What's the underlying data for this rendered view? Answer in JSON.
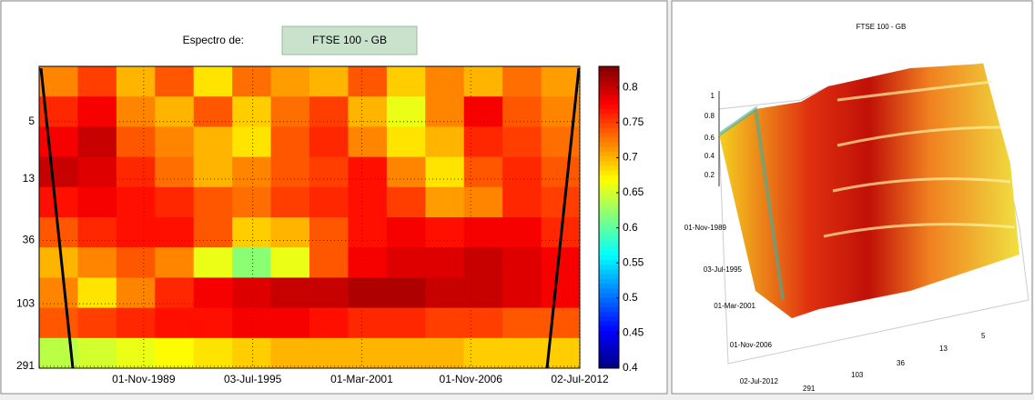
{
  "selector": {
    "label": "Espectro de:",
    "button": "FTSE 100 - GB"
  },
  "chart_data": {
    "type": "heatmap",
    "log_y": true,
    "grid": true,
    "xlim": [
      1984.4,
      2012.5
    ],
    "xticks": [
      {
        "value": 1989.833,
        "label": "01-Nov-1989"
      },
      {
        "value": 1995.5,
        "label": "03-Jul-1995"
      },
      {
        "value": 2001.167,
        "label": "01-Mar-2001"
      },
      {
        "value": 2006.833,
        "label": "01-Nov-2006"
      },
      {
        "value": 2012.5,
        "label": "02-Jul-2012"
      }
    ],
    "ylim": [
      2,
      300
    ],
    "yticks": [
      5,
      13,
      36,
      103,
      291
    ],
    "clim": [
      0.4,
      0.83
    ],
    "cticks": [
      0.4,
      0.45,
      0.5,
      0.55,
      0.6,
      0.65,
      0.7,
      0.75,
      0.8
    ],
    "rows": [
      [
        0.72,
        0.75,
        0.7,
        0.74,
        0.68,
        0.73,
        0.71,
        0.7,
        0.74,
        0.69,
        0.72,
        0.7,
        0.73,
        0.71
      ],
      [
        0.76,
        0.78,
        0.72,
        0.7,
        0.74,
        0.69,
        0.73,
        0.75,
        0.7,
        0.66,
        0.72,
        0.78,
        0.74,
        0.72
      ],
      [
        0.78,
        0.8,
        0.74,
        0.72,
        0.7,
        0.68,
        0.74,
        0.76,
        0.72,
        0.68,
        0.7,
        0.76,
        0.75,
        0.73
      ],
      [
        0.8,
        0.79,
        0.76,
        0.73,
        0.7,
        0.72,
        0.74,
        0.75,
        0.77,
        0.72,
        0.68,
        0.74,
        0.76,
        0.74
      ],
      [
        0.77,
        0.78,
        0.77,
        0.76,
        0.74,
        0.73,
        0.75,
        0.76,
        0.77,
        0.75,
        0.71,
        0.72,
        0.76,
        0.75
      ],
      [
        0.74,
        0.76,
        0.77,
        0.77,
        0.74,
        0.69,
        0.7,
        0.74,
        0.77,
        0.78,
        0.77,
        0.78,
        0.78,
        0.76
      ],
      [
        0.7,
        0.72,
        0.74,
        0.72,
        0.66,
        0.62,
        0.66,
        0.74,
        0.78,
        0.79,
        0.79,
        0.8,
        0.79,
        0.78
      ],
      [
        0.72,
        0.68,
        0.72,
        0.76,
        0.78,
        0.79,
        0.8,
        0.8,
        0.81,
        0.81,
        0.8,
        0.8,
        0.79,
        0.78
      ],
      [
        0.74,
        0.75,
        0.76,
        0.77,
        0.77,
        0.78,
        0.78,
        0.77,
        0.76,
        0.76,
        0.75,
        0.75,
        0.74,
        0.74
      ],
      [
        0.64,
        0.65,
        0.66,
        0.67,
        0.68,
        0.69,
        0.7,
        0.7,
        0.7,
        0.7,
        0.7,
        0.69,
        0.69,
        0.69
      ]
    ]
  },
  "surface": {
    "title": "FTSE 100 - GB",
    "zticks": [
      1,
      0.8,
      0.6,
      0.4,
      0.2
    ],
    "dates": [
      "01-Nov-1989",
      "03-Jul-1995",
      "01-Mar-2001",
      "01-Nov-2006",
      "02-Jul-2012"
    ],
    "scales": [
      291,
      103,
      36,
      13,
      5
    ]
  }
}
